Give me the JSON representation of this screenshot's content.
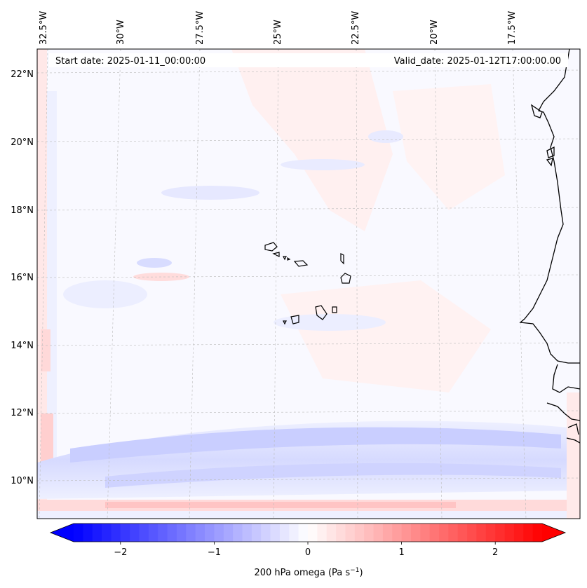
{
  "header": {
    "start_date": "Start date: 2025-01-11_00:00:00",
    "valid_date": "Valid_date: 2025-01-12T17:00:00.00"
  },
  "map": {
    "variable": "200 hPa omega",
    "lon_labels": [
      "32.5°W",
      "30°W",
      "27.5°W",
      "25°W",
      "22.5°W",
      "20°W",
      "17.5°W"
    ],
    "lat_labels": [
      "22°N",
      "20°N",
      "18°N",
      "16°N",
      "14°N",
      "12°N",
      "10°N"
    ],
    "grid": true,
    "features": [
      "coastline-west-africa",
      "cape-verde-islands"
    ]
  },
  "colorbar": {
    "label_main": "200 hPa omega (Pa s",
    "label_exp": "−1",
    "label_close": ")",
    "ticks": [
      "−2",
      "−1",
      "0",
      "1",
      "2"
    ],
    "tick_values": [
      -2,
      -1,
      0,
      1,
      2
    ],
    "range": [
      -2.5,
      2.5
    ],
    "colormap": "bwr",
    "extend": "both",
    "colors": {
      "min": "#0000ff",
      "mid": "#ffffff",
      "max": "#ff0000"
    }
  }
}
